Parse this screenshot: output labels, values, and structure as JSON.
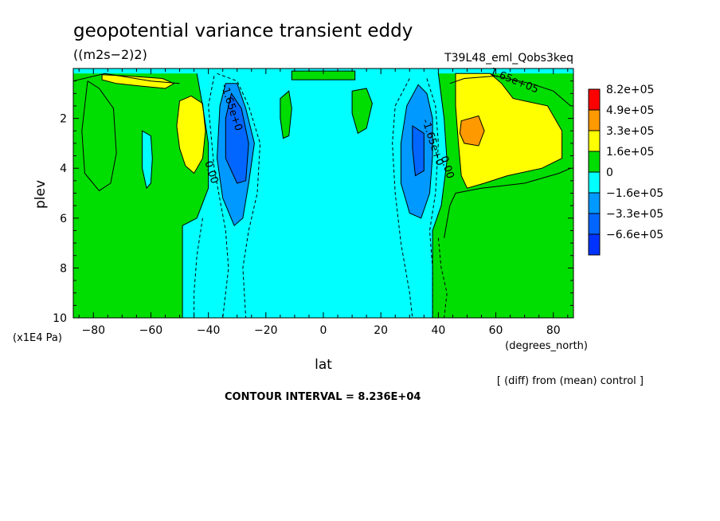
{
  "chart_data": {
    "type": "contour",
    "title": "geopotential variance transient eddy",
    "units": "((m2s−2)2)",
    "run_label": "T39L48_eml_Qobs3keq",
    "xlabel": "lat",
    "x_units": "(degrees_north)",
    "ylabel": "plev",
    "y_units": "(x1E4 Pa)",
    "xlim": [
      -87,
      87
    ],
    "ylim": [
      10,
      0
    ],
    "x_ticks": [
      -80,
      -60,
      -40,
      -20,
      0,
      20,
      40,
      60,
      80
    ],
    "x_tick_labels": [
      "−80",
      "−60",
      "−40",
      "−20",
      "0",
      "20",
      "40",
      "60",
      "80"
    ],
    "y_ticks": [
      2,
      4,
      6,
      8,
      10
    ],
    "y_tick_labels": [
      "2",
      "4",
      "6",
      "8",
      "10"
    ],
    "contour_interval_text": "CONTOUR INTERVAL = 8.236E+04",
    "diff_note": "[ (diff) from (mean) control ]",
    "contour_labels": [
      {
        "text": "1.65e+05",
        "lat": 66,
        "plev": 0.6
      },
      {
        "text": "-1.65e+0",
        "lat": -33,
        "plev": 1.6
      },
      {
        "text": "-1.65e+0",
        "lat": 37,
        "plev": 3.0
      },
      {
        "text": "0.00",
        "lat": -40,
        "plev": 4.2
      },
      {
        "text": "0.00",
        "lat": 42,
        "plev": 4.0
      }
    ],
    "legend": {
      "labels": [
        "8.2e+05",
        "4.9e+05",
        "3.3e+05",
        "1.6e+05",
        "0",
        "−1.6e+05",
        "−3.3e+05",
        "−6.6e+05"
      ],
      "colors": [
        "#ff0000",
        "#ff9900",
        "#ffff00",
        "#00dd00",
        "#00ffff",
        "#0099ff",
        "#0066ff",
        "#0033ff"
      ]
    },
    "regions": [
      {
        "name": "ch-green-north",
        "fill": "#00dd00",
        "pts": [
          [
            38,
            10
          ],
          [
            38,
            6.5
          ],
          [
            41,
            5.5
          ],
          [
            43,
            3.7
          ],
          [
            42,
            2
          ],
          [
            40,
            0.2
          ],
          [
            87,
            0.2
          ],
          [
            87,
            10
          ]
        ]
      },
      {
        "name": "ch-green-south",
        "fill": "#00dd00",
        "pts": [
          [
            -87,
            0.2
          ],
          [
            -87,
            10
          ],
          [
            -49,
            10
          ],
          [
            -49,
            6.3
          ],
          [
            -44,
            6
          ],
          [
            -40,
            4.8
          ],
          [
            -40,
            3
          ],
          [
            -42,
            1.5
          ],
          [
            -44,
            0.2
          ]
        ]
      },
      {
        "name": "ch-yellow-north",
        "fill": "#ffff00",
        "pts": [
          [
            46,
            0.2
          ],
          [
            58,
            0.2
          ],
          [
            62,
            0.6
          ],
          [
            66,
            1.2
          ],
          [
            78,
            1.5
          ],
          [
            83,
            2.5
          ],
          [
            83,
            3.6
          ],
          [
            76,
            4
          ],
          [
            64,
            4.3
          ],
          [
            56,
            4.6
          ],
          [
            50,
            4.8
          ],
          [
            48,
            4.3
          ],
          [
            47,
            3
          ],
          [
            46,
            1.5
          ]
        ]
      },
      {
        "name": "ch-orange-north",
        "fill": "#ff9900",
        "pts": [
          [
            48,
            2.1
          ],
          [
            54,
            1.9
          ],
          [
            56,
            2.5
          ],
          [
            54,
            3.1
          ],
          [
            49,
            3.0
          ],
          [
            47.5,
            2.6
          ]
        ]
      },
      {
        "name": "ch-yellow-south-top",
        "fill": "#ffff00",
        "pts": [
          [
            -77,
            0.25
          ],
          [
            -68,
            0.3
          ],
          [
            -56,
            0.4
          ],
          [
            -52,
            0.6
          ],
          [
            -55,
            0.8
          ],
          [
            -64,
            0.7
          ],
          [
            -72,
            0.6
          ],
          [
            -77,
            0.45
          ]
        ]
      },
      {
        "name": "ch-yellow-south",
        "fill": "#ffff00",
        "pts": [
          [
            -50,
            1.3
          ],
          [
            -46,
            1.1
          ],
          [
            -42,
            1.4
          ],
          [
            -41,
            2.5
          ],
          [
            -42,
            3.6
          ],
          [
            -45,
            4.2
          ],
          [
            -48,
            3.9
          ],
          [
            -50,
            3.2
          ],
          [
            -51,
            2.3
          ]
        ]
      },
      {
        "name": "ch-blue-south",
        "fill": "#0099ff",
        "pts": [
          [
            -34,
            0.6
          ],
          [
            -30,
            0.6
          ],
          [
            -27,
            1.6
          ],
          [
            -24,
            3.0
          ],
          [
            -26,
            4.6
          ],
          [
            -28,
            6.0
          ],
          [
            -31,
            6.3
          ],
          [
            -35,
            5.2
          ],
          [
            -37,
            3.6
          ],
          [
            -36,
            1.5
          ]
        ]
      },
      {
        "name": "ch-blue-north",
        "fill": "#0099ff",
        "pts": [
          [
            33,
            0.65
          ],
          [
            36,
            1.0
          ],
          [
            38,
            2.0
          ],
          [
            38,
            3.5
          ],
          [
            37,
            5.0
          ],
          [
            34,
            6.0
          ],
          [
            30,
            5.8
          ],
          [
            27,
            4.6
          ],
          [
            27,
            3.0
          ],
          [
            29,
            1.5
          ]
        ]
      },
      {
        "name": "ch-darkblue-south",
        "fill": "#0066ff",
        "pts": [
          [
            -32,
            1.0
          ],
          [
            -28.5,
            1.6
          ],
          [
            -26,
            3.0
          ],
          [
            -27,
            4.5
          ],
          [
            -30,
            4.6
          ],
          [
            -34,
            3.6
          ],
          [
            -34,
            2.0
          ]
        ]
      },
      {
        "name": "ch-darkblue-north",
        "fill": "#0066ff",
        "pts": [
          [
            31,
            2.3
          ],
          [
            35,
            2.6
          ],
          [
            35,
            4.1
          ],
          [
            32,
            4.3
          ],
          [
            31,
            3.2
          ]
        ]
      },
      {
        "name": "ch-cyan-island",
        "fill": "#00ffff",
        "pts": [
          [
            -63,
            2.5
          ],
          [
            -60,
            2.7
          ],
          [
            -59.5,
            3.6
          ],
          [
            -60,
            4.6
          ],
          [
            -61.5,
            4.8
          ],
          [
            -63,
            4.0
          ]
        ]
      },
      {
        "name": "ch-green-top",
        "fill": "#00dd00",
        "pts": [
          [
            -11,
            0.1
          ],
          [
            11,
            0.1
          ],
          [
            11,
            0.45
          ],
          [
            -11,
            0.45
          ]
        ]
      },
      {
        "name": "ch-green-blob-left",
        "fill": "#00dd00",
        "pts": [
          [
            -15,
            1.2
          ],
          [
            -12,
            0.9
          ],
          [
            -11,
            1.6
          ],
          [
            -12,
            2.7
          ],
          [
            -14,
            2.8
          ],
          [
            -15,
            2.0
          ]
        ]
      },
      {
        "name": "ch-green-blob-right",
        "fill": "#00dd00",
        "pts": [
          [
            10,
            0.9
          ],
          [
            15,
            0.8
          ],
          [
            17,
            1.4
          ],
          [
            15,
            2.4
          ],
          [
            12,
            2.6
          ],
          [
            10,
            1.8
          ]
        ]
      }
    ],
    "contours": [
      {
        "name": "ct-zero-north",
        "dash": false,
        "pts": [
          [
            38,
            10
          ],
          [
            38,
            6.5
          ],
          [
            41,
            5.5
          ],
          [
            43,
            3.7
          ],
          [
            42,
            2
          ],
          [
            40,
            0.2
          ]
        ]
      },
      {
        "name": "ct-zero-south",
        "dash": false,
        "pts": [
          [
            -49,
            10
          ],
          [
            -49,
            6.3
          ],
          [
            -44,
            6
          ],
          [
            -40,
            4.8
          ],
          [
            -40,
            3
          ],
          [
            -42,
            1.5
          ],
          [
            -44,
            0.2
          ]
        ]
      },
      {
        "name": "ct-pos-north-outer",
        "dash": false,
        "pts": [
          [
            44,
            0.6
          ],
          [
            49,
            0.4
          ],
          [
            60,
            0.3
          ],
          [
            72,
            0.6
          ],
          [
            80,
            0.9
          ],
          [
            86,
            1.5
          ]
        ]
      },
      {
        "name": "ct-pos-north-side",
        "dash": false,
        "pts": [
          [
            42,
            6.8
          ],
          [
            44,
            5.5
          ],
          [
            46,
            5.0
          ],
          [
            55,
            4.8
          ],
          [
            70,
            4.6
          ],
          [
            82,
            4.2
          ],
          [
            86,
            4.0
          ]
        ]
      },
      {
        "name": "ct-pos-south-1",
        "dash": false,
        "pts": [
          [
            -82,
            0.5
          ],
          [
            -84,
            2.5
          ],
          [
            -83,
            4.2
          ],
          [
            -78,
            4.9
          ],
          [
            -74,
            4.6
          ],
          [
            -72,
            3.4
          ],
          [
            -73,
            1.6
          ],
          [
            -78,
            0.8
          ],
          [
            -82,
            0.5
          ]
        ]
      },
      {
        "name": "ct-pos-south-2",
        "dash": false,
        "pts": [
          [
            -87,
            0.5
          ],
          [
            -76,
            0.2
          ],
          [
            -60,
            0.5
          ],
          [
            -50,
            0.6
          ]
        ]
      },
      {
        "name": "ct-neg-south-a",
        "dash": true,
        "pts": [
          [
            -38,
            0.3
          ],
          [
            -40,
            1.5
          ],
          [
            -38,
            4
          ],
          [
            -34,
            6.5
          ],
          [
            -33,
            8
          ],
          [
            -35,
            10
          ]
        ]
      },
      {
        "name": "ct-neg-south-b",
        "dash": true,
        "pts": [
          [
            -37,
            0.2
          ],
          [
            -30,
            0.5
          ],
          [
            -26,
            1.5
          ],
          [
            -22,
            3.0
          ],
          [
            -23,
            5
          ],
          [
            -26,
            6.5
          ],
          [
            -28,
            8
          ],
          [
            -27,
            10
          ]
        ]
      },
      {
        "name": "ct-neg-south-c",
        "dash": true,
        "pts": [
          [
            -42,
            6.0
          ],
          [
            -44,
            7.5
          ],
          [
            -45,
            9
          ],
          [
            -45,
            10
          ]
        ]
      },
      {
        "name": "ct-neg-north-a",
        "dash": true,
        "pts": [
          [
            30,
            0.4
          ],
          [
            25,
            1.5
          ],
          [
            24,
            3
          ],
          [
            25,
            5
          ],
          [
            27,
            7
          ],
          [
            30,
            9
          ],
          [
            31,
            10
          ]
        ]
      },
      {
        "name": "ct-neg-north-b",
        "dash": true,
        "pts": [
          [
            36,
            0.4
          ],
          [
            39,
            1.5
          ],
          [
            40,
            3
          ],
          [
            39,
            5
          ],
          [
            37,
            6.5
          ],
          [
            38,
            8
          ],
          [
            38,
            10
          ]
        ]
      },
      {
        "name": "ct-neg-north-c",
        "dash": true,
        "pts": [
          [
            40,
            6.8
          ],
          [
            41,
            8
          ],
          [
            43,
            9
          ],
          [
            42,
            10
          ]
        ]
      }
    ]
  }
}
